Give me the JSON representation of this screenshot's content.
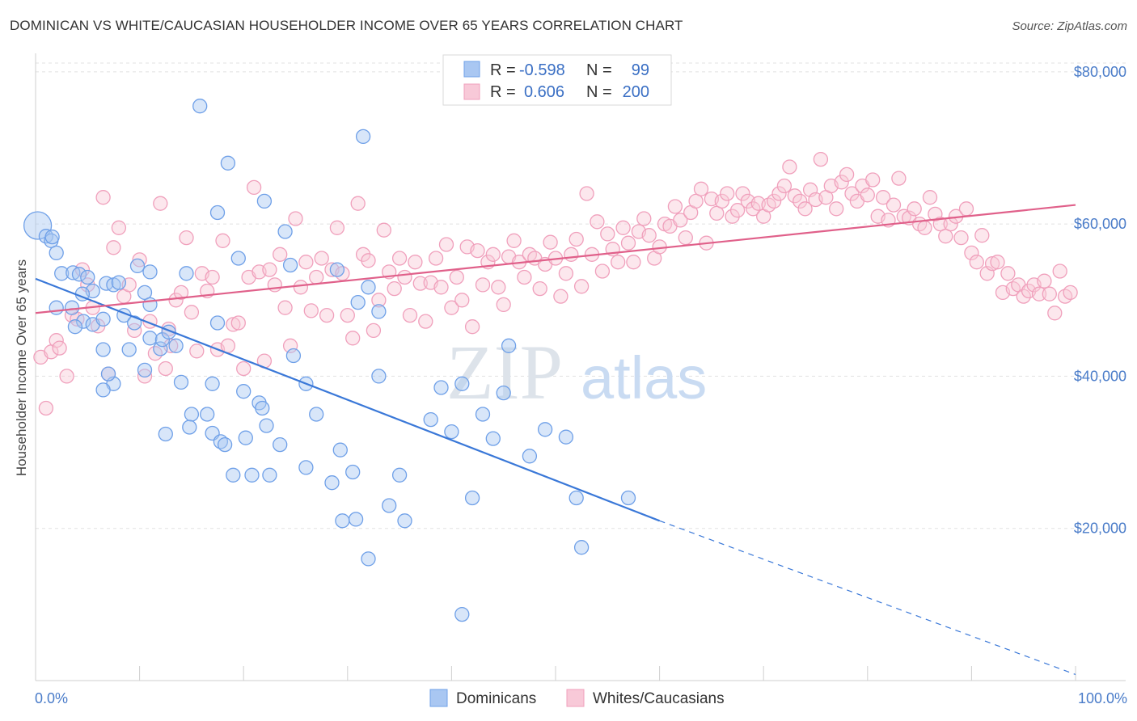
{
  "title": "DOMINICAN VS WHITE/CAUCASIAN HOUSEHOLDER INCOME OVER 65 YEARS CORRELATION CHART",
  "source": "Source: ZipAtlas.com",
  "watermark": {
    "zip": "ZIP",
    "atlas": "atlas"
  },
  "chart_data": {
    "type": "scatter",
    "ylabel": "Householder Income Over 65 years",
    "x_tick_labels": [
      "0.0%",
      "100.0%"
    ],
    "y_tick_labels": [
      "$20,000",
      "$40,000",
      "$60,000",
      "$80,000"
    ],
    "xlim": [
      0,
      100
    ],
    "ylim": [
      0,
      82000
    ],
    "y_ticks": [
      20000,
      40000,
      60000,
      80000
    ],
    "grid": true,
    "legend": {
      "position": "top-center",
      "r_label": "R =",
      "n_label": "N =",
      "entries": [
        {
          "series": "Dominicans",
          "r": "-0.598",
          "n": "99"
        },
        {
          "series": "Whites/Caucasians",
          "r": "0.606",
          "n": "200"
        }
      ]
    },
    "series": [
      {
        "name": "Dominicans",
        "color": "#6fa0e8",
        "fill": "#a9c7f2",
        "line_color": "#3a78d8",
        "trend": {
          "x0": 0,
          "y0": 52800,
          "x1": 60,
          "y1": 21000,
          "dashed_to_x": 100,
          "dashed_to_y": 800
        },
        "points": [
          [
            0.2,
            59800
          ],
          [
            1.0,
            58400
          ],
          [
            1.5,
            57800
          ],
          [
            1.6,
            58300
          ],
          [
            2.0,
            56200
          ],
          [
            2.5,
            53500
          ],
          [
            3.6,
            53600
          ],
          [
            4.2,
            53400
          ],
          [
            5.5,
            51200
          ],
          [
            3.5,
            49000
          ],
          [
            4.6,
            47200
          ],
          [
            5.5,
            46800
          ],
          [
            6.5,
            47500
          ],
          [
            4.5,
            50800
          ],
          [
            6.8,
            52200
          ],
          [
            7.5,
            52000
          ],
          [
            8.5,
            48000
          ],
          [
            9.8,
            54500
          ],
          [
            10.5,
            51000
          ],
          [
            11.0,
            53700
          ],
          [
            11.0,
            49400
          ],
          [
            9.5,
            47000
          ],
          [
            9.0,
            43500
          ],
          [
            7.5,
            39000
          ],
          [
            6.5,
            38200
          ],
          [
            7.0,
            40300
          ],
          [
            6.5,
            43500
          ],
          [
            10.5,
            40800
          ],
          [
            11.0,
            45000
          ],
          [
            12.0,
            43600
          ],
          [
            12.2,
            44800
          ],
          [
            12.8,
            45800
          ],
          [
            13.5,
            44000
          ],
          [
            14.5,
            53500
          ],
          [
            14.0,
            39200
          ],
          [
            15.0,
            35000
          ],
          [
            16.5,
            35000
          ],
          [
            14.8,
            33300
          ],
          [
            12.5,
            32400
          ],
          [
            17.0,
            39000
          ],
          [
            17.5,
            47000
          ],
          [
            17.0,
            32500
          ],
          [
            17.8,
            31400
          ],
          [
            18.2,
            31000
          ],
          [
            19.0,
            27000
          ],
          [
            20.0,
            38000
          ],
          [
            20.2,
            31900
          ],
          [
            20.8,
            27000
          ],
          [
            21.5,
            36500
          ],
          [
            21.8,
            35800
          ],
          [
            22.2,
            33500
          ],
          [
            22.5,
            27000
          ],
          [
            23.5,
            31000
          ],
          [
            24.8,
            42700
          ],
          [
            24.5,
            54600
          ],
          [
            24.0,
            59000
          ],
          [
            22.0,
            63000
          ],
          [
            19.5,
            55500
          ],
          [
            18.5,
            68000
          ],
          [
            17.5,
            61500
          ],
          [
            15.8,
            75500
          ],
          [
            31.5,
            71500
          ],
          [
            29.0,
            54000
          ],
          [
            32.0,
            51700
          ],
          [
            31.0,
            49700
          ],
          [
            33.0,
            48500
          ],
          [
            33.0,
            40000
          ],
          [
            26.0,
            39000
          ],
          [
            27.0,
            35000
          ],
          [
            26.0,
            28000
          ],
          [
            28.5,
            26000
          ],
          [
            29.3,
            30300
          ],
          [
            30.5,
            27400
          ],
          [
            29.5,
            21000
          ],
          [
            30.8,
            21200
          ],
          [
            32.0,
            16000
          ],
          [
            34.0,
            23000
          ],
          [
            35.5,
            21000
          ],
          [
            35.0,
            27000
          ],
          [
            38.0,
            34300
          ],
          [
            39.0,
            38500
          ],
          [
            40.0,
            32700
          ],
          [
            41.0,
            39000
          ],
          [
            42.0,
            24000
          ],
          [
            43.0,
            35000
          ],
          [
            44.0,
            31800
          ],
          [
            45.0,
            37800
          ],
          [
            45.5,
            44000
          ],
          [
            47.5,
            29500
          ],
          [
            49.0,
            33000
          ],
          [
            51.0,
            32000
          ],
          [
            52.0,
            24000
          ],
          [
            52.5,
            17500
          ],
          [
            57.0,
            24000
          ],
          [
            41.0,
            8700
          ],
          [
            5.0,
            53000
          ],
          [
            2.0,
            49000
          ],
          [
            3.8,
            46500
          ],
          [
            8.0,
            52300
          ]
        ]
      },
      {
        "name": "Whites/Caucasians",
        "color": "#f0a0bc",
        "fill": "#f8c9d8",
        "line_color": "#e0608a",
        "trend": {
          "x0": 0,
          "y0": 48300,
          "x1": 100,
          "y1": 62500
        },
        "points": [
          [
            0.5,
            42500
          ],
          [
            1.0,
            35800
          ],
          [
            1.5,
            43200
          ],
          [
            2.0,
            44700
          ],
          [
            2.3,
            43700
          ],
          [
            3.0,
            40000
          ],
          [
            3.5,
            48000
          ],
          [
            4.0,
            47500
          ],
          [
            4.5,
            54000
          ],
          [
            5.0,
            52000
          ],
          [
            5.5,
            49000
          ],
          [
            6.0,
            46600
          ],
          [
            6.5,
            63500
          ],
          [
            7.0,
            40300
          ],
          [
            7.5,
            56900
          ],
          [
            8.0,
            59500
          ],
          [
            8.5,
            50500
          ],
          [
            9.0,
            52000
          ],
          [
            9.5,
            46000
          ],
          [
            10.0,
            55300
          ],
          [
            10.5,
            40000
          ],
          [
            11.0,
            47200
          ],
          [
            11.5,
            43000
          ],
          [
            12.0,
            62700
          ],
          [
            12.5,
            41000
          ],
          [
            12.8,
            46200
          ],
          [
            13.0,
            44000
          ],
          [
            13.5,
            50000
          ],
          [
            14.0,
            51000
          ],
          [
            14.5,
            58200
          ],
          [
            15.0,
            48400
          ],
          [
            15.5,
            43300
          ],
          [
            16.0,
            53500
          ],
          [
            16.5,
            51200
          ],
          [
            17.0,
            53000
          ],
          [
            17.5,
            43500
          ],
          [
            18.0,
            57800
          ],
          [
            18.5,
            44000
          ],
          [
            19.0,
            46800
          ],
          [
            19.5,
            47000
          ],
          [
            20.0,
            41000
          ],
          [
            20.5,
            53000
          ],
          [
            21.0,
            64800
          ],
          [
            21.5,
            53700
          ],
          [
            22.0,
            42000
          ],
          [
            22.5,
            54000
          ],
          [
            23.0,
            52000
          ],
          [
            23.5,
            56000
          ],
          [
            24.0,
            49000
          ],
          [
            24.5,
            44000
          ],
          [
            25.0,
            60700
          ],
          [
            25.5,
            51700
          ],
          [
            26.0,
            55000
          ],
          [
            26.5,
            48600
          ],
          [
            27.0,
            53000
          ],
          [
            27.5,
            55500
          ],
          [
            28.0,
            48000
          ],
          [
            28.5,
            54000
          ],
          [
            29.0,
            59500
          ],
          [
            29.5,
            53500
          ],
          [
            30.0,
            48000
          ],
          [
            30.5,
            45000
          ],
          [
            31.0,
            62700
          ],
          [
            31.5,
            56000
          ],
          [
            32.0,
            55200
          ],
          [
            32.5,
            46000
          ],
          [
            33.0,
            50000
          ],
          [
            33.5,
            59200
          ],
          [
            34.0,
            53700
          ],
          [
            34.5,
            51500
          ],
          [
            35.0,
            55500
          ],
          [
            35.5,
            53000
          ],
          [
            36.0,
            48000
          ],
          [
            36.5,
            55000
          ],
          [
            37.0,
            52200
          ],
          [
            37.5,
            47200
          ],
          [
            38.0,
            52300
          ],
          [
            38.5,
            55500
          ],
          [
            39.0,
            51700
          ],
          [
            39.5,
            57300
          ],
          [
            40.0,
            49000
          ],
          [
            40.5,
            53000
          ],
          [
            41.0,
            50000
          ],
          [
            41.5,
            57000
          ],
          [
            42.0,
            46500
          ],
          [
            42.5,
            56500
          ],
          [
            43.0,
            52000
          ],
          [
            43.5,
            55000
          ],
          [
            44.0,
            56000
          ],
          [
            44.5,
            51700
          ],
          [
            45.0,
            49400
          ],
          [
            45.5,
            55700
          ],
          [
            46.0,
            57800
          ],
          [
            46.5,
            55000
          ],
          [
            47.0,
            53000
          ],
          [
            47.5,
            56000
          ],
          [
            48.0,
            55500
          ],
          [
            48.5,
            51500
          ],
          [
            49.0,
            54700
          ],
          [
            49.5,
            57600
          ],
          [
            50.0,
            55500
          ],
          [
            50.5,
            50500
          ],
          [
            51.0,
            53500
          ],
          [
            51.5,
            56000
          ],
          [
            52.0,
            58000
          ],
          [
            52.5,
            51800
          ],
          [
            53.0,
            64000
          ],
          [
            53.5,
            56000
          ],
          [
            54.0,
            60300
          ],
          [
            54.5,
            53800
          ],
          [
            55.0,
            58700
          ],
          [
            55.5,
            56700
          ],
          [
            56.0,
            55000
          ],
          [
            56.5,
            59500
          ],
          [
            57.0,
            57500
          ],
          [
            57.5,
            55000
          ],
          [
            58.0,
            59000
          ],
          [
            58.5,
            60700
          ],
          [
            59.0,
            58500
          ],
          [
            59.5,
            55500
          ],
          [
            60.0,
            57000
          ],
          [
            60.5,
            60000
          ],
          [
            61.0,
            59700
          ],
          [
            61.5,
            62300
          ],
          [
            62.0,
            60500
          ],
          [
            62.5,
            58200
          ],
          [
            63.0,
            61500
          ],
          [
            63.5,
            63000
          ],
          [
            64.0,
            64600
          ],
          [
            64.5,
            57500
          ],
          [
            65.0,
            63300
          ],
          [
            65.5,
            61400
          ],
          [
            66.0,
            63000
          ],
          [
            66.5,
            64000
          ],
          [
            67.0,
            61000
          ],
          [
            67.5,
            61800
          ],
          [
            68.0,
            64000
          ],
          [
            68.5,
            63000
          ],
          [
            69.0,
            62000
          ],
          [
            69.5,
            62700
          ],
          [
            70.0,
            61000
          ],
          [
            70.5,
            62500
          ],
          [
            71.0,
            63000
          ],
          [
            71.5,
            64000
          ],
          [
            72.0,
            65000
          ],
          [
            72.5,
            67500
          ],
          [
            73.0,
            63700
          ],
          [
            73.5,
            63000
          ],
          [
            74.0,
            62000
          ],
          [
            74.5,
            64500
          ],
          [
            75.0,
            63200
          ],
          [
            75.5,
            68500
          ],
          [
            76.0,
            63500
          ],
          [
            76.5,
            65000
          ],
          [
            77.0,
            62000
          ],
          [
            77.5,
            65500
          ],
          [
            78.0,
            66500
          ],
          [
            78.5,
            64000
          ],
          [
            79.0,
            63000
          ],
          [
            79.5,
            65000
          ],
          [
            80.0,
            63800
          ],
          [
            80.5,
            65800
          ],
          [
            81.0,
            61000
          ],
          [
            81.5,
            63500
          ],
          [
            82.0,
            60500
          ],
          [
            82.5,
            62500
          ],
          [
            83.0,
            66000
          ],
          [
            83.5,
            61000
          ],
          [
            84.0,
            60800
          ],
          [
            84.5,
            62000
          ],
          [
            85.0,
            60000
          ],
          [
            85.5,
            59500
          ],
          [
            86.0,
            63500
          ],
          [
            86.5,
            61300
          ],
          [
            87.0,
            60000
          ],
          [
            87.5,
            58400
          ],
          [
            88.0,
            60000
          ],
          [
            88.5,
            61000
          ],
          [
            89.0,
            58200
          ],
          [
            89.5,
            62000
          ],
          [
            90.0,
            56200
          ],
          [
            90.5,
            55000
          ],
          [
            91.0,
            58500
          ],
          [
            91.5,
            53500
          ],
          [
            92.0,
            54800
          ],
          [
            92.5,
            55000
          ],
          [
            93.0,
            51000
          ],
          [
            93.5,
            53500
          ],
          [
            94.0,
            51500
          ],
          [
            94.5,
            52000
          ],
          [
            95.0,
            50500
          ],
          [
            95.5,
            51200
          ],
          [
            96.0,
            52000
          ],
          [
            96.5,
            50800
          ],
          [
            97.0,
            52500
          ],
          [
            97.5,
            50800
          ],
          [
            98.0,
            48300
          ],
          [
            98.5,
            53800
          ],
          [
            99.0,
            50500
          ],
          [
            99.5,
            51000
          ]
        ]
      }
    ]
  }
}
